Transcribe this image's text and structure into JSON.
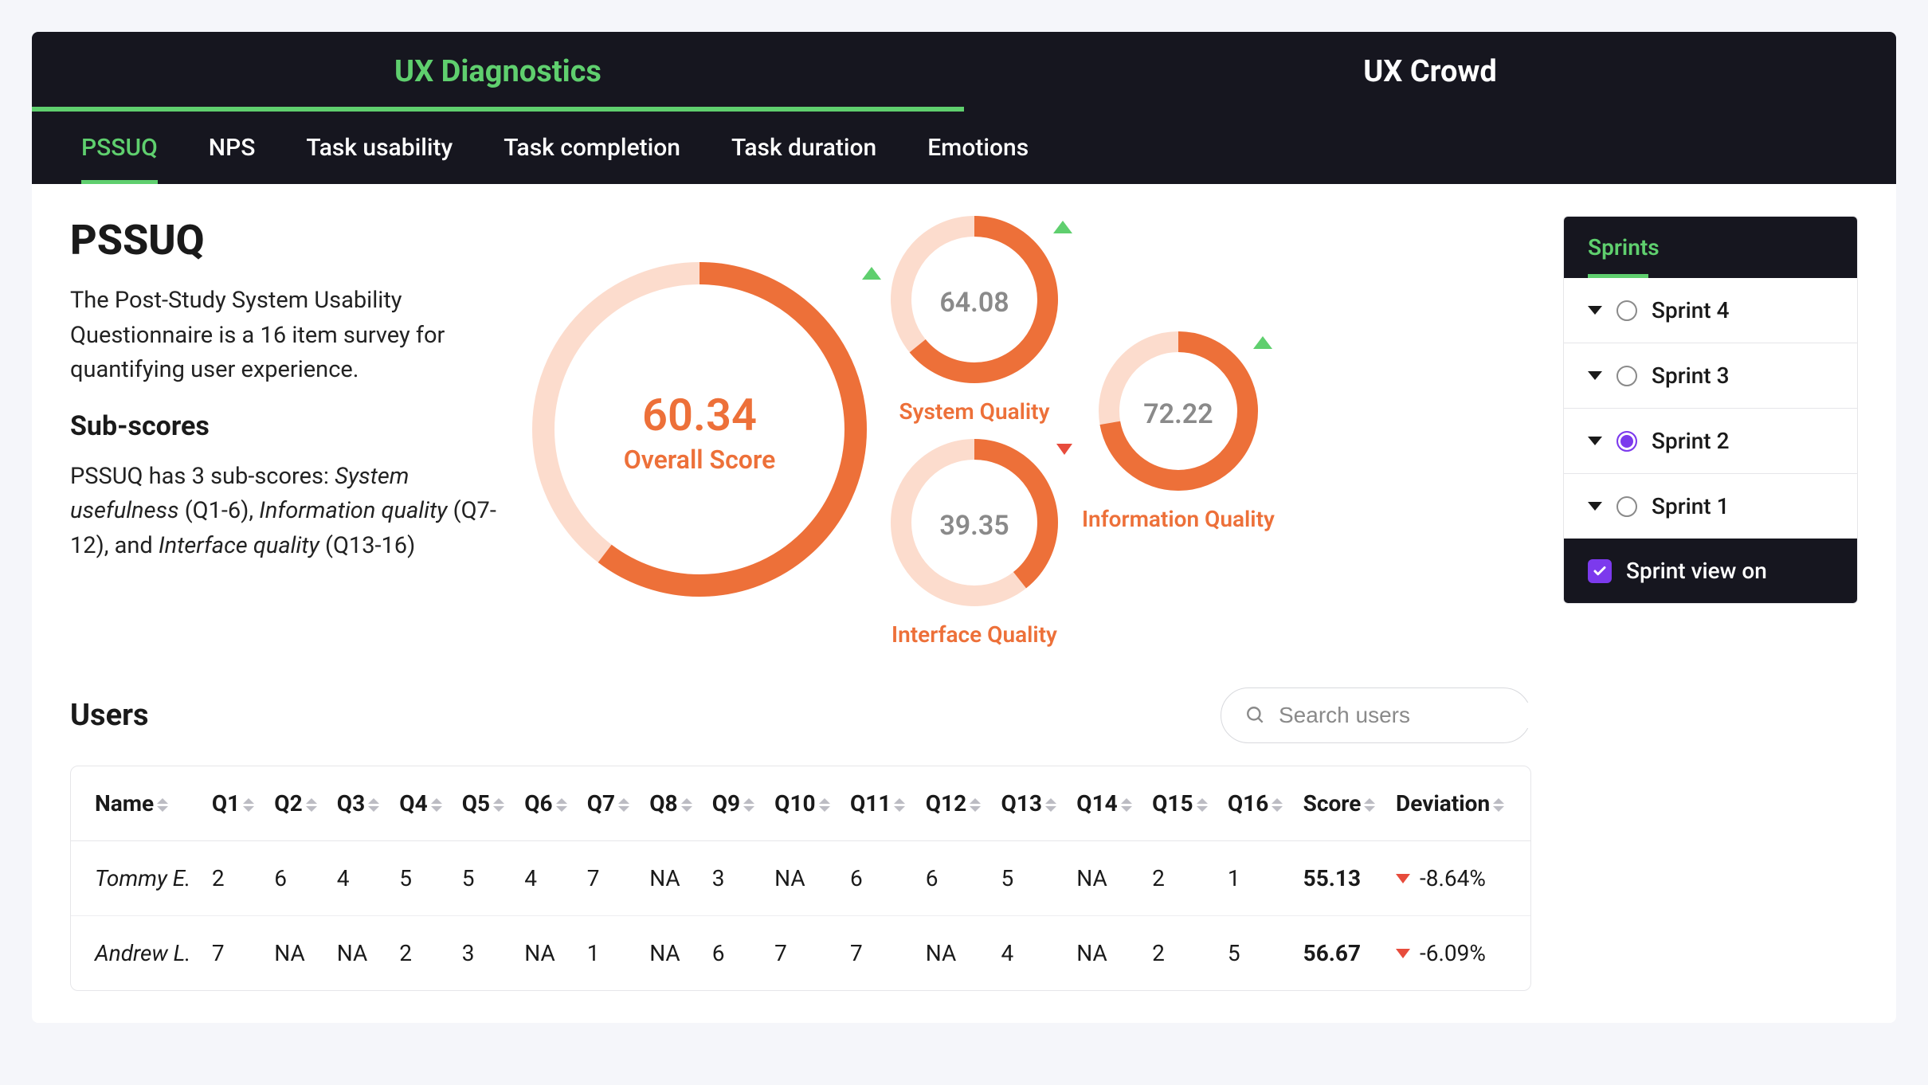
{
  "colors": {
    "accent_green": "#5fcf6e",
    "accent_orange": "#ed7039",
    "orange_track": "#fcdccd",
    "header_bg": "#16161f",
    "text_muted": "#8a8a8a",
    "indicator_up": "#5fcf6e",
    "indicator_down": "#e74c3c",
    "purple": "#7c3aed"
  },
  "top_tabs": {
    "items": [
      "UX Diagnostics",
      "UX Crowd"
    ],
    "active_index": 0
  },
  "sub_tabs": {
    "items": [
      "PSSUQ",
      "NPS",
      "Task usability",
      "Task completion",
      "Task duration",
      "Emotions"
    ],
    "active_index": 0
  },
  "page": {
    "title": "PSSUQ",
    "description": "The Post-Study System Usability Questionnaire is a 16 item survey for quantifying user experience.",
    "subheading": "Sub-scores",
    "subdesc_prefix": "PSSUQ has 3 sub-scores: ",
    "subdesc_parts": {
      "a": "System usefulness",
      "a_range": " (Q1-6), ",
      "b": "Information quality",
      "b_range": " (Q7-12), and ",
      "c": "Interface quality",
      "c_range": " (Q13-16)"
    }
  },
  "gauges": {
    "overall": {
      "value": "60.34",
      "label": "Overall Score",
      "percent": 60.34,
      "diameter": 420,
      "stroke": 28,
      "indicator": "up"
    },
    "system": {
      "value": "64.08",
      "caption": "System Quality",
      "percent": 64.08,
      "diameter": 210,
      "stroke": 26,
      "indicator": "up"
    },
    "interface": {
      "value": "39.35",
      "caption": "Interface Quality",
      "percent": 39.35,
      "diameter": 210,
      "stroke": 26,
      "indicator": "down"
    },
    "information": {
      "value": "72.22",
      "caption": "Information Quality",
      "percent": 72.22,
      "diameter": 200,
      "stroke": 26,
      "indicator": "up"
    }
  },
  "users": {
    "heading": "Users",
    "search_placeholder": "Search users",
    "columns": [
      "Name",
      "Q1",
      "Q2",
      "Q3",
      "Q4",
      "Q5",
      "Q6",
      "Q7",
      "Q8",
      "Q9",
      "Q10",
      "Q11",
      "Q12",
      "Q13",
      "Q14",
      "Q15",
      "Q16",
      "Score",
      "Deviation"
    ],
    "rows": [
      {
        "name": "Tommy E.",
        "q": [
          "2",
          "6",
          "4",
          "5",
          "5",
          "4",
          "7",
          "NA",
          "3",
          "NA",
          "6",
          "6",
          "5",
          "NA",
          "2",
          "1"
        ],
        "score": "55.13",
        "deviation": "-8.64%",
        "dev_dir": "down"
      },
      {
        "name": "Andrew L.",
        "q": [
          "7",
          "NA",
          "NA",
          "2",
          "3",
          "NA",
          "1",
          "NA",
          "6",
          "7",
          "7",
          "NA",
          "4",
          "NA",
          "2",
          "5"
        ],
        "score": "56.67",
        "deviation": "-6.09%",
        "dev_dir": "down"
      }
    ]
  },
  "sprints": {
    "header": "Sprints",
    "items": [
      {
        "label": "Sprint 4",
        "selected": false
      },
      {
        "label": "Sprint 3",
        "selected": false
      },
      {
        "label": "Sprint 2",
        "selected": true
      },
      {
        "label": "Sprint 1",
        "selected": false
      }
    ],
    "footer_label": "Sprint view on",
    "footer_checked": true
  }
}
